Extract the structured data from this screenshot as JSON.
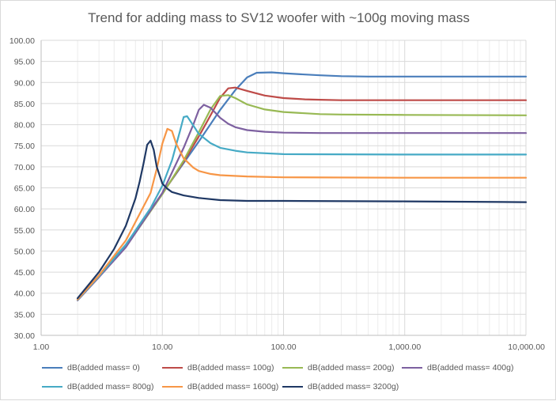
{
  "chart_data": {
    "type": "line",
    "title": "Trend for adding mass to SV12 woofer with ~100g moving mass",
    "xlabel": "",
    "ylabel": "",
    "x_scale": "log",
    "xlim": [
      1,
      10000
    ],
    "ylim": [
      30,
      100
    ],
    "x_ticks": [
      1,
      10,
      100,
      1000,
      10000
    ],
    "x_tick_labels": [
      "1.00",
      "10.00",
      "100.00",
      "1,000.00",
      "10,000.00"
    ],
    "y_ticks": [
      30,
      35,
      40,
      45,
      50,
      55,
      60,
      65,
      70,
      75,
      80,
      85,
      90,
      95,
      100
    ],
    "y_tick_labels": [
      "30.00",
      "35.00",
      "40.00",
      "45.00",
      "50.00",
      "55.00",
      "60.00",
      "65.00",
      "70.00",
      "75.00",
      "80.00",
      "85.00",
      "90.00",
      "95.00",
      "100.00"
    ],
    "grid": "horizontal major, vertical major and minor",
    "legend_position": "bottom",
    "series": [
      {
        "name": "dB(added mass= 0)",
        "color": "#4a7ebb",
        "x": [
          2,
          3,
          5,
          10,
          20,
          30,
          40,
          50,
          60,
          80,
          100,
          150,
          200,
          300,
          500,
          1000,
          10000
        ],
        "y": [
          38.6,
          44.2,
          51.5,
          63.7,
          76.0,
          83.5,
          88.2,
          91.2,
          92.3,
          92.4,
          92.2,
          91.9,
          91.7,
          91.5,
          91.4,
          91.4,
          91.4
        ]
      },
      {
        "name": "dB(added mass= 100g)",
        "color": "#be4b48",
        "x": [
          2,
          3,
          5,
          10,
          15,
          20,
          25,
          30,
          35,
          40,
          50,
          70,
          100,
          150,
          200,
          300,
          1000,
          10000
        ],
        "y": [
          38.5,
          44.0,
          51.2,
          63.6,
          71.2,
          77.2,
          82.2,
          86.4,
          88.6,
          88.8,
          88.0,
          86.9,
          86.3,
          86.0,
          85.9,
          85.8,
          85.8,
          85.8
        ]
      },
      {
        "name": "dB(added mass= 200g)",
        "color": "#98b954",
        "x": [
          2,
          3,
          5,
          10,
          15,
          20,
          25,
          30,
          35,
          40,
          50,
          70,
          100,
          150,
          200,
          300,
          1000,
          10000
        ],
        "y": [
          38.4,
          43.9,
          51.0,
          63.5,
          71.5,
          78.2,
          83.6,
          86.8,
          87.0,
          86.3,
          84.8,
          83.6,
          83.0,
          82.7,
          82.5,
          82.4,
          82.3,
          82.2
        ]
      },
      {
        "name": "dB(added mass= 400g)",
        "color": "#7d60a0",
        "x": [
          2,
          3,
          5,
          10,
          15,
          18,
          20,
          22,
          25,
          30,
          35,
          40,
          50,
          70,
          100,
          200,
          1000,
          10000
        ],
        "y": [
          38.3,
          43.8,
          50.9,
          63.8,
          74.5,
          80.0,
          83.5,
          84.7,
          84.0,
          81.6,
          80.2,
          79.4,
          78.7,
          78.3,
          78.1,
          78.0,
          78.0,
          78.0
        ]
      },
      {
        "name": "dB(added mass= 800g)",
        "color": "#46aac5",
        "x": [
          2,
          3,
          5,
          8,
          10,
          12,
          14,
          15,
          16,
          18,
          20,
          25,
          30,
          40,
          50,
          100,
          1000,
          10000
        ],
        "y": [
          38.4,
          44.0,
          51.5,
          60.2,
          65.5,
          71.5,
          78.5,
          81.8,
          82.0,
          79.8,
          77.8,
          75.6,
          74.5,
          73.8,
          73.4,
          73.0,
          72.9,
          72.9
        ]
      },
      {
        "name": "dB(added mass= 1600g)",
        "color": "#f79646",
        "x": [
          2,
          3,
          5,
          8,
          9,
          10,
          11,
          12,
          13,
          15,
          18,
          20,
          25,
          30,
          50,
          100,
          1000,
          10000
        ],
        "y": [
          38.5,
          44.2,
          52.5,
          63.8,
          69.5,
          75.5,
          79.0,
          78.5,
          75.5,
          72.0,
          69.8,
          69.0,
          68.3,
          68.0,
          67.7,
          67.5,
          67.4,
          67.4
        ]
      },
      {
        "name": "dB(added mass= 3200g)",
        "color": "#1f3864",
        "x": [
          2,
          3,
          4,
          5,
          6,
          6.5,
          7,
          7.5,
          8,
          8.5,
          9,
          10,
          11,
          12,
          15,
          20,
          30,
          50,
          100,
          1000,
          10000
        ],
        "y": [
          38.8,
          45.0,
          50.5,
          56.0,
          62.5,
          66.5,
          70.8,
          75.2,
          76.2,
          74.0,
          70.0,
          66.0,
          64.8,
          64.0,
          63.2,
          62.6,
          62.1,
          61.9,
          61.9,
          61.8,
          61.6
        ]
      }
    ]
  },
  "legend": [
    "dB(added mass= 0)",
    "dB(added mass= 100g)",
    "dB(added mass= 200g)",
    "dB(added mass= 400g)",
    "dB(added mass= 800g)",
    "dB(added mass= 1600g)",
    "dB(added mass= 3200g)"
  ]
}
